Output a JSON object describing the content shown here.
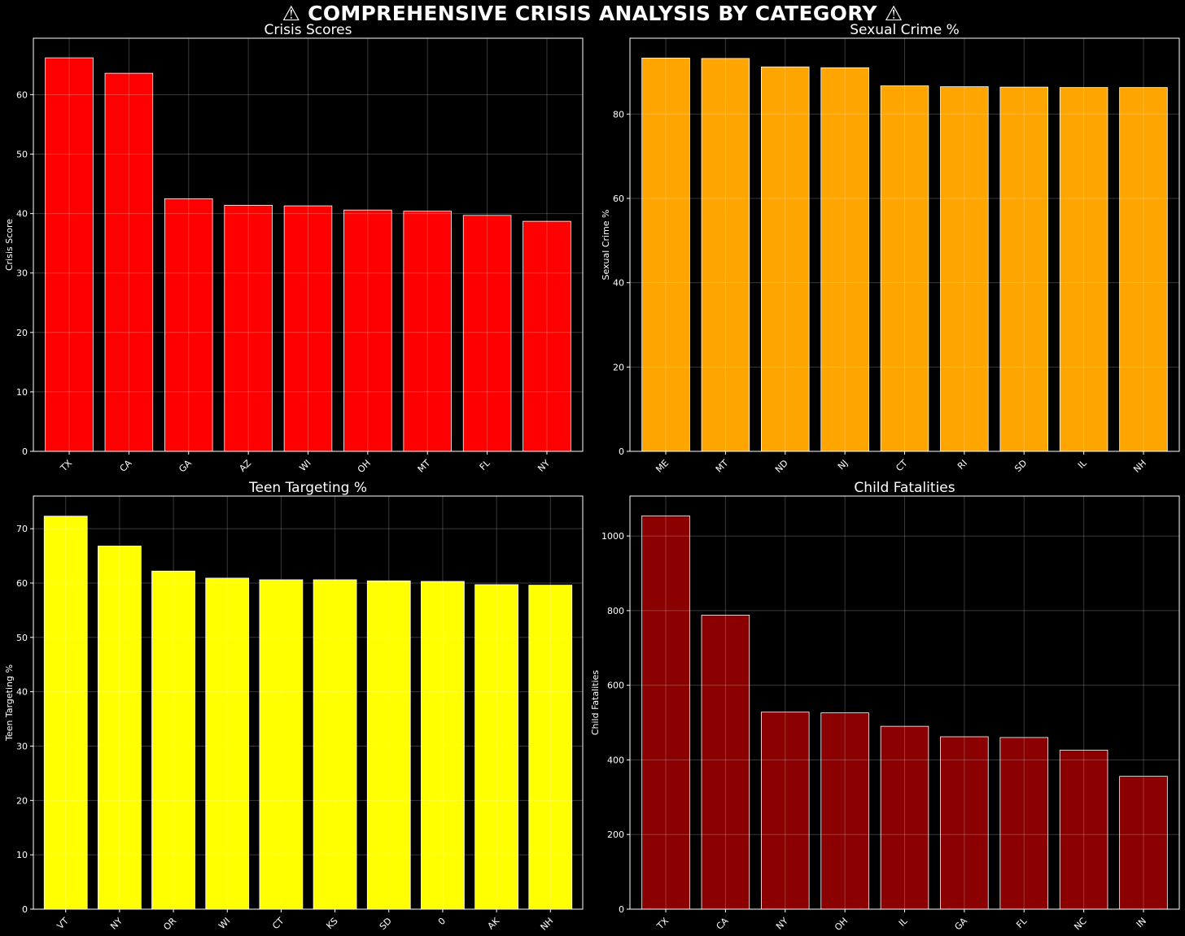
{
  "title": "⚠ COMPREHENSIVE CRISIS ANALYSIS BY CATEGORY ⚠",
  "chart_data": [
    {
      "type": "bar",
      "title": "Crisis Scores",
      "xlabel": "",
      "ylabel": "Crisis Score",
      "categories": [
        "TX",
        "CA",
        "GA",
        "AZ",
        "WI",
        "OH",
        "MT",
        "FL",
        "NY"
      ],
      "values": [
        66.2,
        63.6,
        42.5,
        41.4,
        41.3,
        40.6,
        40.4,
        39.7,
        38.7
      ],
      "ylim": [
        0,
        69.5
      ],
      "yticks": [
        0,
        10,
        20,
        30,
        40,
        50,
        60
      ],
      "color": "#ff0000",
      "grid": true
    },
    {
      "type": "bar",
      "title": "Sexual Crime %",
      "xlabel": "",
      "ylabel": "Sexual Crime %",
      "categories": [
        "ME",
        "MT",
        "ND",
        "NJ",
        "CT",
        "RI",
        "SD",
        "IL",
        "NH"
      ],
      "values": [
        93.3,
        93.2,
        91.2,
        91.0,
        86.7,
        86.5,
        86.4,
        86.3,
        86.3
      ],
      "ylim": [
        0,
        98
      ],
      "yticks": [
        0,
        20,
        40,
        60,
        80
      ],
      "color": "#ffa500",
      "grid": true
    },
    {
      "type": "bar",
      "title": "Teen Targeting %",
      "xlabel": "",
      "ylabel": "Teen Targeting %",
      "categories": [
        "VT",
        "NY",
        "OR",
        "WI",
        "CT",
        "KS",
        "SD",
        "0",
        "AK",
        "NH"
      ],
      "values": [
        72.3,
        66.8,
        62.2,
        60.9,
        60.6,
        60.6,
        60.4,
        60.3,
        59.7,
        59.6
      ],
      "ylim": [
        0,
        76
      ],
      "yticks": [
        0,
        10,
        20,
        30,
        40,
        50,
        60,
        70
      ],
      "color": "#ffff00",
      "grid": true
    },
    {
      "type": "bar",
      "title": "Child Fatalities",
      "xlabel": "",
      "ylabel": "Child Fatalities",
      "categories": [
        "TX",
        "CA",
        "NY",
        "OH",
        "IL",
        "GA",
        "FL",
        "NC",
        "IN"
      ],
      "values": [
        1054,
        788,
        528,
        526,
        490,
        462,
        460,
        426,
        356
      ],
      "ylim": [
        0,
        1107
      ],
      "yticks": [
        0,
        200,
        400,
        600,
        800,
        1000
      ],
      "color": "#8b0000",
      "grid": true
    }
  ]
}
